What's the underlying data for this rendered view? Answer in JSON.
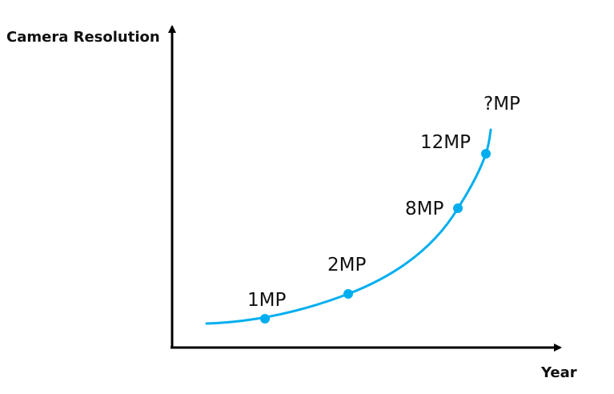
{
  "chart_data": {
    "type": "line",
    "ylabel": "Camera Resolution",
    "xlabel": "Year",
    "series": [
      {
        "points": [
          {
            "label": "1MP",
            "value": 1,
            "marker": true
          },
          {
            "label": "2MP",
            "value": 2,
            "marker": true
          },
          {
            "label": "8MP",
            "value": 8,
            "marker": true
          },
          {
            "label": "12MP",
            "value": 12,
            "marker": true
          },
          {
            "label": "?MP",
            "value": null,
            "marker": false
          }
        ]
      }
    ],
    "grid": false,
    "legend": "none"
  },
  "colors": {
    "curve": "#00aeef",
    "axis": "#000000",
    "text": "#111111"
  }
}
